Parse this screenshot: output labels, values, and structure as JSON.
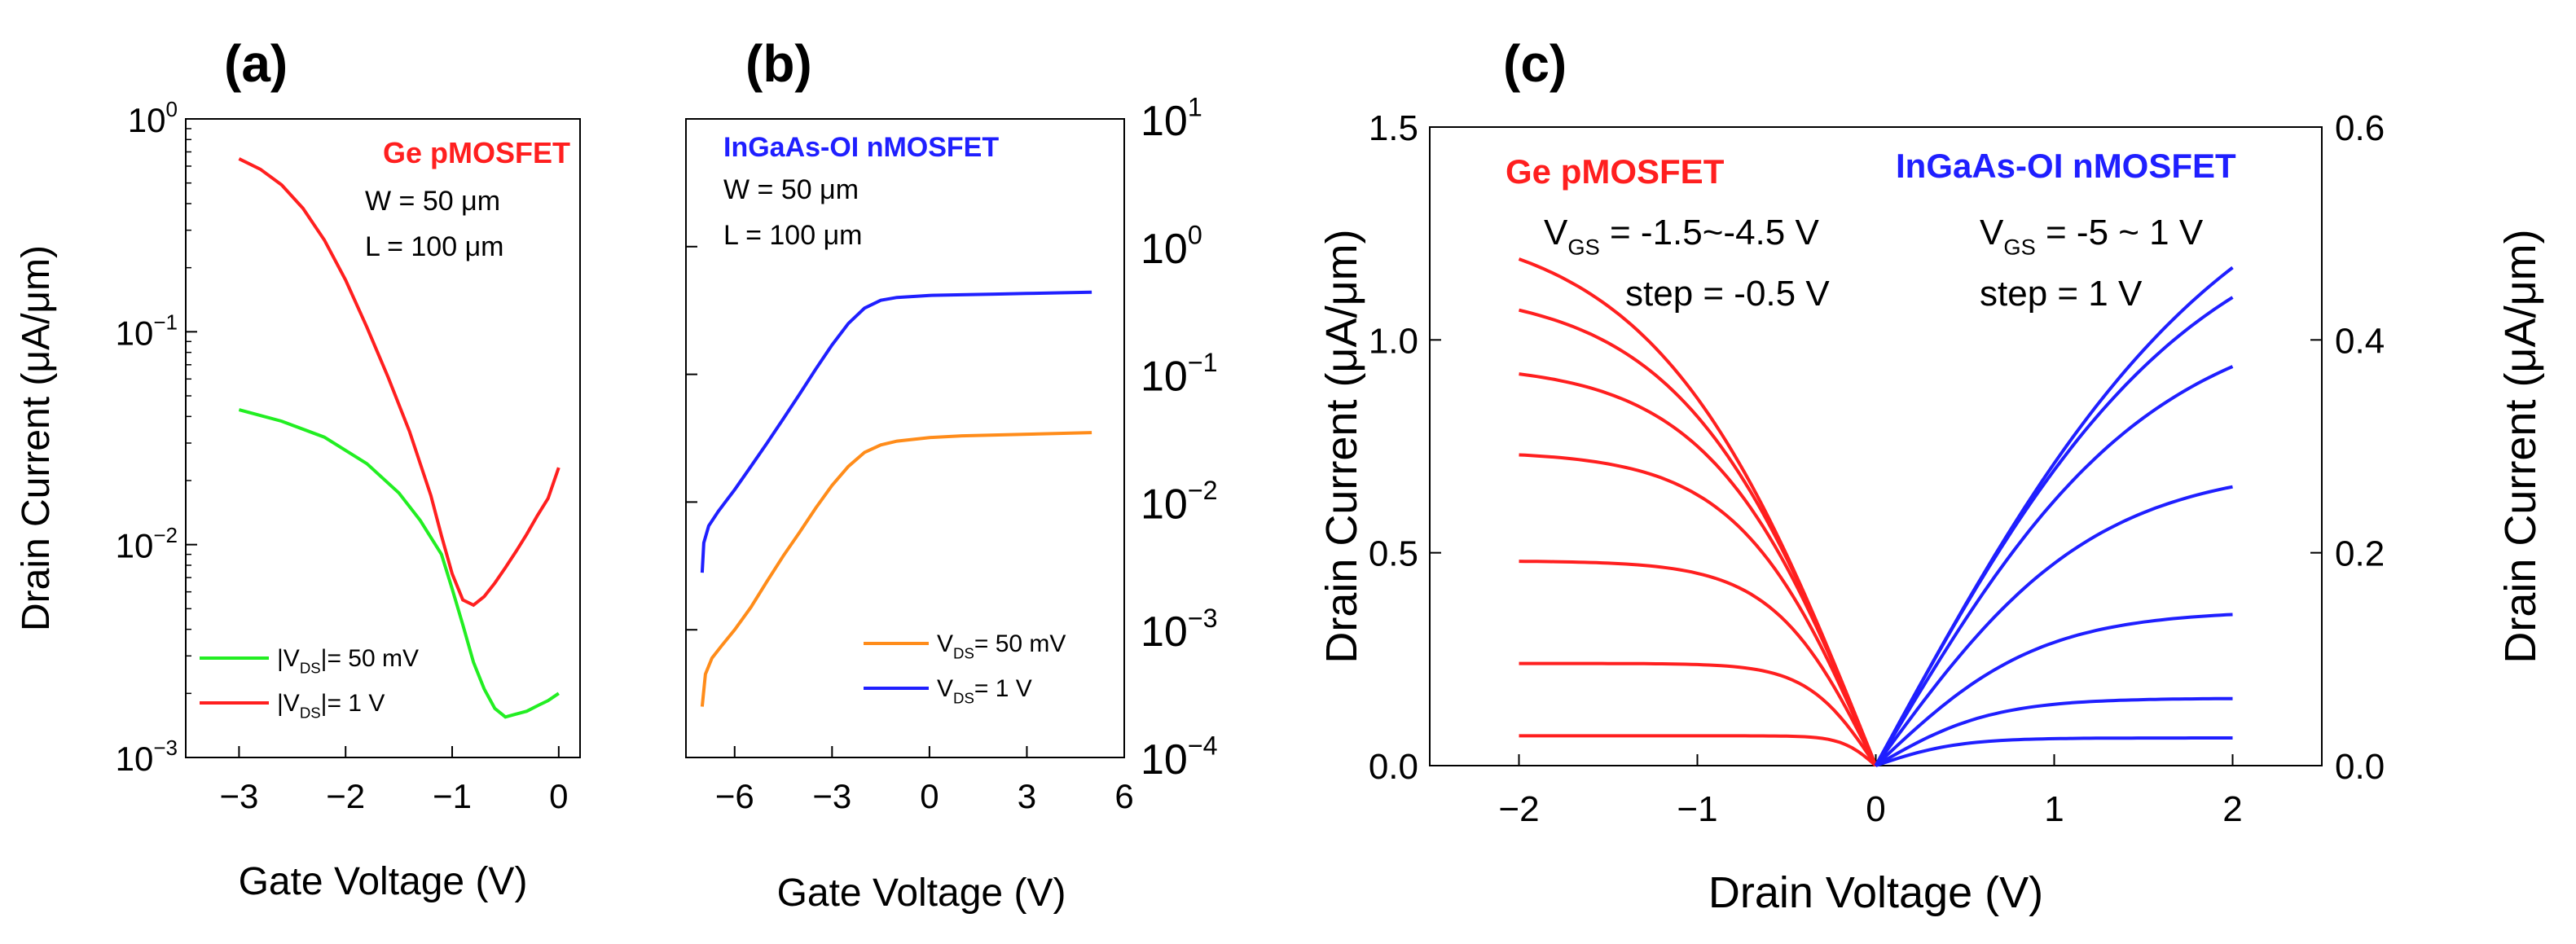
{
  "chart_data": [
    {
      "panel": "(a)",
      "type": "line",
      "yscale": "log",
      "xlabel": "Gate Voltage (V)",
      "ylabel": "Drain Current (μA/μm)",
      "xlim": [
        -3.5,
        0.2
      ],
      "ylim": [
        0.001,
        1
      ],
      "xticks": [
        -3,
        -2,
        -1,
        0
      ],
      "xtick_labels": [
        "−3",
        "−2",
        "−1",
        "0"
      ],
      "yticks": [
        0.001,
        0.01,
        0.1,
        1
      ],
      "ytick_labels": [
        {
          "base": "10",
          "exp": "-3"
        },
        {
          "base": "10",
          "exp": "-2"
        },
        {
          "base": "10",
          "exp": "-1"
        },
        {
          "base": "10",
          "exp": "0"
        }
      ],
      "title": "Ge pMOSFET",
      "title_color": "#ff1f1f",
      "annotations": [
        "W = 50 μm",
        "L = 100 μm"
      ],
      "legend": [
        {
          "pre": "|V",
          "sub": "DS",
          "post": "|= 50 mV",
          "color": "#22ee22"
        },
        {
          "pre": "|V",
          "sub": "DS",
          "post": "|= 1 V",
          "color": "#ff1f1f"
        }
      ],
      "series": [
        {
          "name": "|VDS|= 50 mV",
          "color": "#22ee22",
          "x": [
            -3,
            -2.6,
            -2.2,
            -1.8,
            -1.5,
            -1.3,
            -1.1,
            -1.0,
            -0.9,
            -0.8,
            -0.7,
            -0.6,
            -0.5,
            -0.4,
            -0.3,
            -0.2,
            -0.1,
            0
          ],
          "y": [
            0.043,
            0.038,
            0.032,
            0.024,
            0.0175,
            0.013,
            0.009,
            0.0062,
            0.0042,
            0.0028,
            0.0021,
            0.0017,
            0.00155,
            0.0016,
            0.00165,
            0.00175,
            0.00185,
            0.002
          ]
        },
        {
          "name": "|VDS|= 1 V",
          "color": "#ff1f1f",
          "x": [
            -3,
            -2.8,
            -2.6,
            -2.4,
            -2.2,
            -2.0,
            -1.8,
            -1.6,
            -1.4,
            -1.2,
            -1.1,
            -1.0,
            -0.9,
            -0.8,
            -0.7,
            -0.6,
            -0.5,
            -0.4,
            -0.3,
            -0.2,
            -0.1,
            0
          ],
          "y": [
            0.65,
            0.58,
            0.49,
            0.38,
            0.27,
            0.175,
            0.105,
            0.061,
            0.034,
            0.017,
            0.011,
            0.0073,
            0.0055,
            0.0052,
            0.0057,
            0.0066,
            0.0078,
            0.0093,
            0.0112,
            0.0137,
            0.0165,
            0.023
          ]
        }
      ]
    },
    {
      "panel": "(b)",
      "type": "line",
      "yscale": "log",
      "xlabel": "Gate Voltage (V)",
      "ylabel": "",
      "xlim": [
        -7.5,
        6
      ],
      "ylim": [
        0.0001,
        10
      ],
      "xticks": [
        -6,
        -3,
        0,
        3,
        6
      ],
      "xtick_labels": [
        "−6",
        "−3",
        "0",
        "3",
        "6"
      ],
      "yticks": [
        0.0001,
        0.001,
        0.01,
        0.1,
        1,
        10
      ],
      "ytick_labels": [
        {
          "base": "10",
          "exp": "-4"
        },
        {
          "base": "10",
          "exp": "-3"
        },
        {
          "base": "10",
          "exp": "-2"
        },
        {
          "base": "10",
          "exp": "-1"
        },
        {
          "base": "10",
          "exp": "0"
        },
        {
          "base": "10",
          "exp": "1"
        }
      ],
      "title": "InGaAs-OI nMOSFET",
      "title_color": "#1f1fff",
      "annotations": [
        "W = 50 μm",
        "L = 100 μm"
      ],
      "legend": [
        {
          "pre": "V",
          "sub": "DS",
          "post": "= 50 mV",
          "color": "#ff8c1a"
        },
        {
          "pre": "V",
          "sub": "DS",
          "post": "= 1 V",
          "color": "#1f1fff"
        }
      ],
      "series": [
        {
          "name": "VDS= 50 mV",
          "color": "#ff8c1a",
          "x": [
            -7,
            -6.9,
            -6.7,
            -6.4,
            -6,
            -5.5,
            -5,
            -4.5,
            -4,
            -3.5,
            -3,
            -2.5,
            -2,
            -1.5,
            -1,
            0,
            1,
            2,
            3,
            4,
            5
          ],
          "y": [
            0.00025,
            0.00045,
            0.0006,
            0.00075,
            0.001,
            0.0015,
            0.0024,
            0.0038,
            0.0058,
            0.009,
            0.0135,
            0.019,
            0.0245,
            0.028,
            0.03,
            0.032,
            0.033,
            0.0335,
            0.034,
            0.0345,
            0.035
          ]
        },
        {
          "name": "VDS= 1 V",
          "color": "#1f1fff",
          "x": [
            -7,
            -6.95,
            -6.8,
            -6.5,
            -6,
            -5.5,
            -5,
            -4.5,
            -4,
            -3.5,
            -3,
            -2.5,
            -2,
            -1.5,
            -1,
            0,
            1,
            2,
            3,
            4,
            5
          ],
          "y": [
            0.0028,
            0.0048,
            0.0065,
            0.0085,
            0.0125,
            0.019,
            0.029,
            0.045,
            0.07,
            0.11,
            0.17,
            0.25,
            0.33,
            0.38,
            0.4,
            0.415,
            0.42,
            0.425,
            0.43,
            0.435,
            0.44
          ]
        }
      ]
    },
    {
      "panel": "(c)",
      "type": "line",
      "yscale": "linear",
      "xlabel": "Drain Voltage (V)",
      "ylabel": "Drain Current (μA/μm)",
      "ylabel_right": "Drain Current (μA/μm)",
      "xlim": [
        -2.5,
        2.5
      ],
      "ylim": [
        0,
        1.5
      ],
      "ylim_right": [
        0,
        0.6
      ],
      "xticks": [
        -2,
        -1,
        0,
        1,
        2
      ],
      "xtick_labels": [
        "−2",
        "−1",
        "0",
        "1",
        "2"
      ],
      "yticks": [
        0.0,
        0.5,
        1.0,
        1.5
      ],
      "ytick_labels": [
        "0.0",
        "0.5",
        "1.0",
        "1.5"
      ],
      "yticks_right": [
        0.0,
        0.2,
        0.4,
        0.6
      ],
      "ytick_labels_right": [
        "0.0",
        "0.2",
        "0.4",
        "0.6"
      ],
      "ge_label": {
        "title": "Ge pMOSFET",
        "vgs": "= -1.5~-4.5 V",
        "step": "step = -0.5  V",
        "color": "#ff1f1f"
      },
      "ingaas_label": {
        "title": "InGaAs-OI nMOSFET",
        "vgs": "= -5 ~ 1 V",
        "step": "step = 1 V",
        "color": "#1f1fff"
      },
      "vgs_symbol": {
        "base": "V",
        "sub": "GS"
      },
      "series_red_saturation_left_axis": [
        0.07,
        0.24,
        0.48,
        0.73,
        0.92,
        1.07,
        1.19
      ],
      "series_red_vsat_knee": [
        0.25,
        0.5,
        0.75,
        1.0,
        1.2,
        1.4,
        1.6
      ],
      "series_blue_saturation_right_axis": [
        0.026,
        0.063,
        0.142,
        0.262,
        0.375,
        0.44,
        0.468
      ],
      "series_blue_vsat_knee": [
        0.6,
        0.85,
        1.2,
        1.6,
        2.0,
        2.3,
        2.6
      ],
      "red_color": "#ff1f1f",
      "blue_color": "#1f1fff"
    }
  ],
  "panel_labels": [
    "(a)",
    "(b)",
    "(c)"
  ]
}
